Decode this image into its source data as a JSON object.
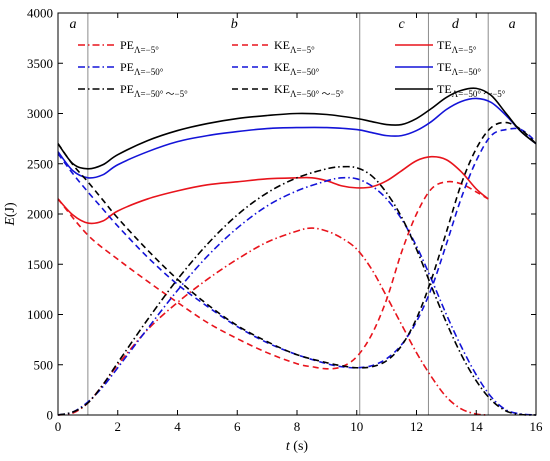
{
  "chart_data": {
    "type": "line",
    "title": "",
    "xlabel_var": "t",
    "xlabel_unit": " (s)",
    "ylabel_var": "E",
    "ylabel_unit": "(J)",
    "xlim": [
      0,
      16
    ],
    "ylim": [
      0,
      4000
    ],
    "xticks": [
      0,
      2,
      4,
      6,
      8,
      10,
      12,
      14,
      16
    ],
    "yticks": [
      0,
      500,
      1000,
      1500,
      2000,
      2500,
      3000,
      3500,
      4000
    ],
    "grid": false,
    "legend_position": "top",
    "phase_lines": [
      1.0,
      10.1,
      12.4,
      14.4
    ],
    "phase_labels": [
      {
        "text": "a",
        "x": 0.5
      },
      {
        "text": "b",
        "x": 5.9
      },
      {
        "text": "c",
        "x": 11.5
      },
      {
        "text": "d",
        "x": 13.3
      },
      {
        "text": "a",
        "x": 15.2
      }
    ],
    "series": [
      {
        "id": "pe5",
        "base": "PE",
        "sub": "Λ=−5°",
        "color": "#e8141c",
        "dash": "dashdot",
        "x": [
          0,
          0.5,
          1,
          1.5,
          2,
          3,
          4,
          5,
          6,
          7,
          8,
          8.5,
          9,
          9.5,
          10,
          10.5,
          11,
          11.5,
          12,
          12.5,
          13,
          13.5,
          14,
          14.4
        ],
        "y": [
          0,
          20,
          120,
          300,
          500,
          850,
          1120,
          1350,
          1550,
          1720,
          1830,
          1860,
          1830,
          1760,
          1650,
          1450,
          1180,
          900,
          620,
          380,
          180,
          60,
          10,
          0
        ]
      },
      {
        "id": "ke5",
        "base": "KE",
        "sub": "Λ=−5°",
        "color": "#e8141c",
        "dash": "dashed",
        "x": [
          0,
          1,
          2,
          3,
          4,
          5,
          6,
          7,
          8,
          8.5,
          9,
          9.5,
          10,
          10.5,
          11,
          11.5,
          12,
          12.5,
          13,
          13.5,
          14,
          14.4
        ],
        "y": [
          2150,
          1790,
          1550,
          1330,
          1120,
          920,
          760,
          620,
          510,
          480,
          460,
          480,
          580,
          800,
          1150,
          1620,
          2000,
          2250,
          2320,
          2300,
          2220,
          2150
        ]
      },
      {
        "id": "te5",
        "base": "TE",
        "sub": "Λ=−5°",
        "color": "#e8141c",
        "dash": "solid",
        "x": [
          0,
          0.5,
          1,
          1.5,
          2,
          3,
          4,
          5,
          6,
          7,
          8,
          8.5,
          9,
          9.5,
          10,
          10.5,
          11,
          11.5,
          12,
          12.5,
          13,
          13.5,
          14,
          14.4
        ],
        "y": [
          2150,
          1990,
          1910,
          1930,
          2030,
          2150,
          2230,
          2290,
          2320,
          2350,
          2360,
          2360,
          2330,
          2280,
          2260,
          2270,
          2330,
          2430,
          2530,
          2570,
          2540,
          2420,
          2250,
          2150
        ]
      },
      {
        "id": "pe50",
        "base": "PE",
        "sub": "Λ=−50°",
        "color": "#1414d8",
        "dash": "dashdot",
        "x": [
          0,
          0.5,
          1,
          1.5,
          2,
          3,
          4,
          5,
          6,
          7,
          8,
          9,
          9.5,
          10,
          10.5,
          11,
          11.5,
          12,
          12.5,
          13,
          13.5,
          14,
          14.5,
          15,
          15.5,
          16
        ],
        "y": [
          0,
          30,
          130,
          280,
          470,
          860,
          1240,
          1580,
          1860,
          2080,
          2230,
          2330,
          2360,
          2350,
          2280,
          2150,
          1950,
          1680,
          1350,
          1000,
          680,
          400,
          180,
          50,
          10,
          0
        ]
      },
      {
        "id": "ke50",
        "base": "KE",
        "sub": "Λ=−50°",
        "color": "#1414d8",
        "dash": "dashed",
        "x": [
          0,
          0.5,
          1,
          1.5,
          2,
          3,
          4,
          5,
          6,
          7,
          8,
          9,
          9.5,
          10,
          10.5,
          11,
          11.5,
          12,
          12.5,
          13,
          13.5,
          14,
          14.5,
          15,
          15.5,
          16
        ],
        "y": [
          2600,
          2400,
          2220,
          2050,
          1880,
          1570,
          1300,
          1080,
          880,
          720,
          600,
          510,
          480,
          470,
          490,
          560,
          700,
          930,
          1260,
          1700,
          2160,
          2530,
          2780,
          2840,
          2840,
          2720
        ]
      },
      {
        "id": "te50",
        "base": "TE",
        "sub": "Λ=−50°",
        "color": "#1414d8",
        "dash": "solid",
        "x": [
          0,
          0.5,
          1,
          1.5,
          2,
          3,
          4,
          5,
          6,
          7,
          8,
          9,
          10,
          10.5,
          11,
          11.5,
          12,
          12.5,
          13,
          13.5,
          14,
          14.5,
          15,
          15.5,
          16
        ],
        "y": [
          2620,
          2430,
          2360,
          2390,
          2490,
          2620,
          2720,
          2780,
          2820,
          2850,
          2860,
          2860,
          2840,
          2810,
          2780,
          2780,
          2830,
          2920,
          3040,
          3120,
          3150,
          3110,
          2980,
          2820,
          2700
        ]
      },
      {
        "id": "pemix",
        "base": "PE",
        "sub": "Λ=−50° ～−5°",
        "color": "#000000",
        "dash": "dashdot",
        "x": [
          0,
          0.5,
          1,
          1.5,
          2,
          3,
          4,
          5,
          6,
          7,
          8,
          9,
          9.5,
          10,
          10.5,
          11,
          11.5,
          12,
          12.5,
          13,
          13.5,
          14,
          14.5,
          15,
          15.5,
          16
        ],
        "y": [
          0,
          30,
          120,
          300,
          520,
          950,
          1350,
          1700,
          1990,
          2210,
          2360,
          2450,
          2470,
          2460,
          2380,
          2210,
          1970,
          1650,
          1280,
          920,
          600,
          340,
          150,
          40,
          5,
          0
        ]
      },
      {
        "id": "kemix",
        "base": "KE",
        "sub": "Λ=−50° ～−5°",
        "color": "#000000",
        "dash": "dashed",
        "x": [
          0,
          0.5,
          1,
          1.5,
          2,
          3,
          4,
          5,
          6,
          7,
          8,
          9,
          9.5,
          10,
          10.5,
          11,
          11.5,
          12,
          12.5,
          13,
          13.5,
          14,
          14.5,
          15,
          15.5,
          16
        ],
        "y": [
          2700,
          2490,
          2320,
          2140,
          1960,
          1640,
          1350,
          1100,
          890,
          730,
          600,
          520,
          490,
          470,
          480,
          540,
          690,
          960,
          1350,
          1820,
          2300,
          2650,
          2860,
          2910,
          2840,
          2700
        ]
      },
      {
        "id": "temix",
        "base": "TE",
        "sub": "Λ=−50° ～−5°",
        "color": "#000000",
        "dash": "solid",
        "x": [
          0,
          0.5,
          1,
          1.5,
          2,
          3,
          4,
          5,
          6,
          7,
          8,
          9,
          10,
          10.5,
          11,
          11.5,
          12,
          12.5,
          13,
          13.5,
          14,
          14.5,
          15,
          15.5,
          16
        ],
        "y": [
          2700,
          2500,
          2450,
          2490,
          2590,
          2730,
          2830,
          2900,
          2950,
          2980,
          3000,
          2990,
          2950,
          2920,
          2890,
          2890,
          2950,
          3050,
          3160,
          3230,
          3250,
          3180,
          3000,
          2820,
          2700
        ]
      }
    ]
  }
}
